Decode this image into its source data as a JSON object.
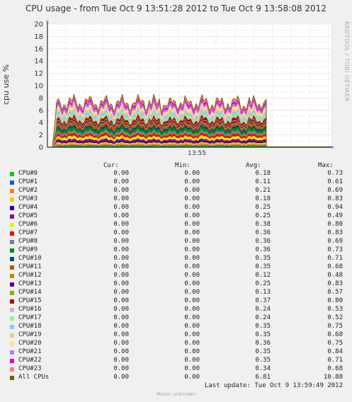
{
  "chart_data": {
    "type": "area",
    "title": "CPU usage - from Tue Oct  9 13:51:28 2012 to Tue Oct  9 13:58:08 2012",
    "ylabel": "cpu use %",
    "xlabel": "",
    "ylim": [
      0,
      20
    ],
    "yticks": [
      "0",
      "2",
      "4",
      "6",
      "8",
      "10",
      "12",
      "14",
      "16",
      "18",
      "20"
    ],
    "xticks": [
      "13:55"
    ],
    "stacked": true,
    "grid": true,
    "legend_headers": [
      "Cur:",
      "Min:",
      "Avg:",
      "Max:"
    ],
    "series": [
      {
        "name": "CPU#0",
        "color": "#00cc00",
        "cur": "0.00",
        "min": "0.00",
        "avg": "0.18",
        "max": "0.73"
      },
      {
        "name": "CPU#1",
        "color": "#0066b3",
        "cur": "0.00",
        "min": "0.00",
        "avg": "0.11",
        "max": "0.61"
      },
      {
        "name": "CPU#2",
        "color": "#ff8000",
        "cur": "0.00",
        "min": "0.00",
        "avg": "0.21",
        "max": "0.69"
      },
      {
        "name": "CPU#3",
        "color": "#ffcc00",
        "cur": "0.00",
        "min": "0.00",
        "avg": "0.18",
        "max": "0.83"
      },
      {
        "name": "CPU#4",
        "color": "#330099",
        "cur": "0.00",
        "min": "0.00",
        "avg": "0.25",
        "max": "0.94"
      },
      {
        "name": "CPU#5",
        "color": "#990099",
        "cur": "0.00",
        "min": "0.00",
        "avg": "0.25",
        "max": "0.49"
      },
      {
        "name": "CPU#6",
        "color": "#ccff00",
        "cur": "0.00",
        "min": "0.00",
        "avg": "0.38",
        "max": "0.80"
      },
      {
        "name": "CPU#7",
        "color": "#ff0000",
        "cur": "0.00",
        "min": "0.00",
        "avg": "0.36",
        "max": "0.83"
      },
      {
        "name": "CPU#8",
        "color": "#808080",
        "cur": "0.00",
        "min": "0.00",
        "avg": "0.36",
        "max": "0.69"
      },
      {
        "name": "CPU#9",
        "color": "#008f00",
        "cur": "0.00",
        "min": "0.00",
        "avg": "0.36",
        "max": "0.73"
      },
      {
        "name": "CPU#10",
        "color": "#00487d",
        "cur": "0.00",
        "min": "0.00",
        "avg": "0.35",
        "max": "0.71"
      },
      {
        "name": "CPU#11",
        "color": "#b35a00",
        "cur": "0.00",
        "min": "0.00",
        "avg": "0.35",
        "max": "0.68"
      },
      {
        "name": "CPU#12",
        "color": "#b38f00",
        "cur": "0.00",
        "min": "0.00",
        "avg": "0.12",
        "max": "0.48"
      },
      {
        "name": "CPU#13",
        "color": "#6b006b",
        "cur": "0.00",
        "min": "0.00",
        "avg": "0.25",
        "max": "0.83"
      },
      {
        "name": "CPU#14",
        "color": "#8fb300",
        "cur": "0.00",
        "min": "0.00",
        "avg": "0.13",
        "max": "0.57"
      },
      {
        "name": "CPU#15",
        "color": "#b30000",
        "cur": "0.00",
        "min": "0.00",
        "avg": "0.37",
        "max": "0.80"
      },
      {
        "name": "CPU#16",
        "color": "#bebebe",
        "cur": "0.00",
        "min": "0.00",
        "avg": "0.24",
        "max": "0.53"
      },
      {
        "name": "CPU#17",
        "color": "#80ff80",
        "cur": "0.00",
        "min": "0.00",
        "avg": "0.24",
        "max": "0.52"
      },
      {
        "name": "CPU#18",
        "color": "#80c9ff",
        "cur": "0.00",
        "min": "0.00",
        "avg": "0.35",
        "max": "0.75"
      },
      {
        "name": "CPU#19",
        "color": "#ffc080",
        "cur": "0.00",
        "min": "0.00",
        "avg": "0.35",
        "max": "0.68"
      },
      {
        "name": "CPU#20",
        "color": "#ffe680",
        "cur": "0.00",
        "min": "0.00",
        "avg": "0.36",
        "max": "0.75"
      },
      {
        "name": "CPU#21",
        "color": "#aa80ff",
        "cur": "0.00",
        "min": "0.00",
        "avg": "0.35",
        "max": "0.84"
      },
      {
        "name": "CPU#22",
        "color": "#ee00cc",
        "cur": "0.00",
        "min": "0.00",
        "avg": "0.35",
        "max": "0.71"
      },
      {
        "name": "CPU#23",
        "color": "#ff8080",
        "cur": "0.00",
        "min": "0.00",
        "avg": "0.34",
        "max": "0.68"
      },
      {
        "name": "All CPUs",
        "color": "#666600",
        "cur": "0.00",
        "min": "0.00",
        "avg": "6.81",
        "max": "10.88"
      }
    ]
  },
  "watermark": "RRDTOOL / TOBI OETIKER",
  "last_update": "Last update:  Tue Oct  9 13:59:49 2012",
  "footer": "Munin unknown"
}
